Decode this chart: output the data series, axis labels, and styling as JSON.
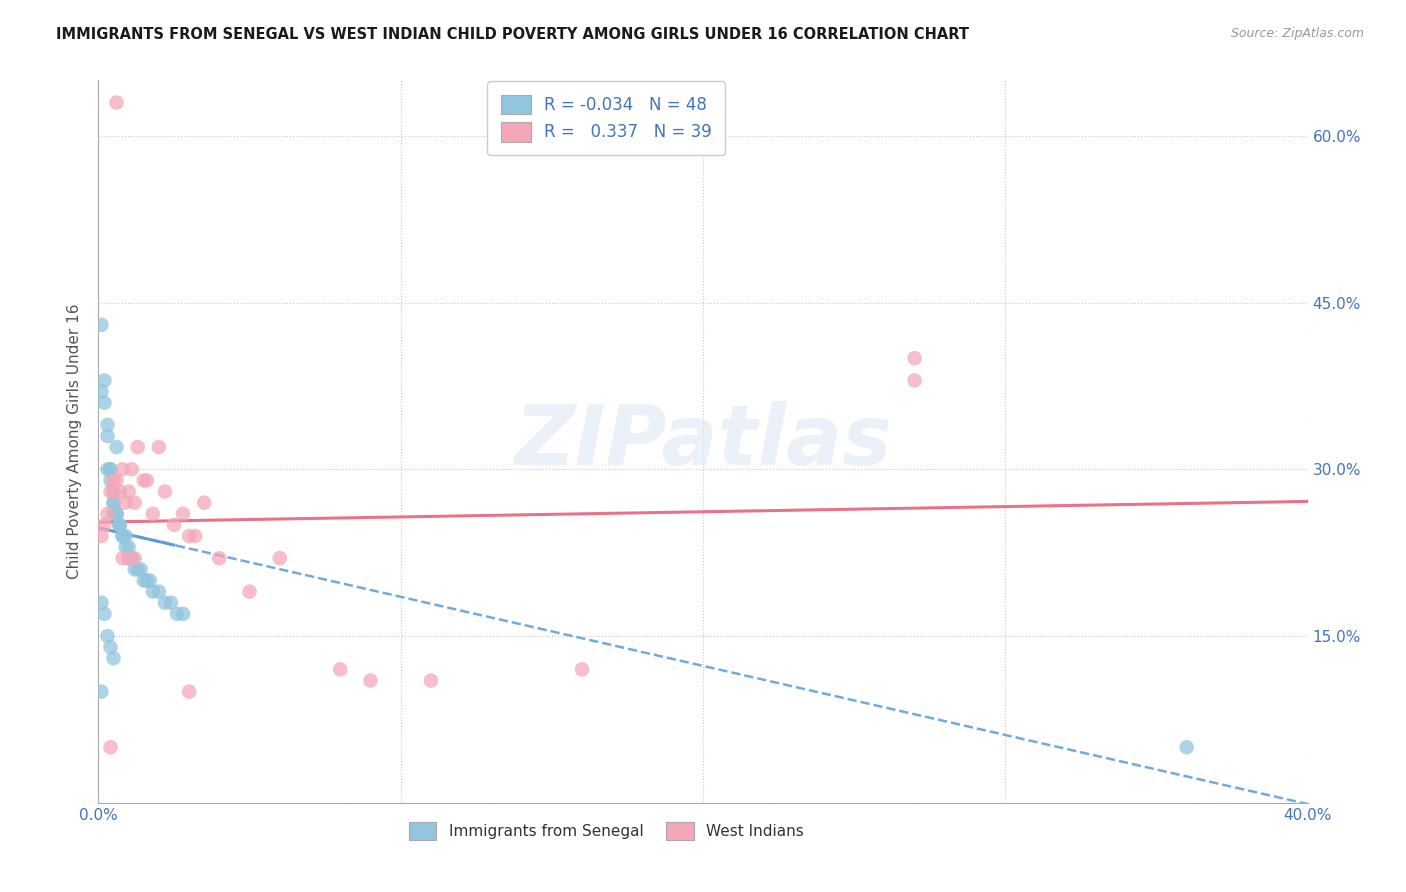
{
  "title": "IMMIGRANTS FROM SENEGAL VS WEST INDIAN CHILD POVERTY AMONG GIRLS UNDER 16 CORRELATION CHART",
  "source": "Source: ZipAtlas.com",
  "ylabel": "Child Poverty Among Girls Under 16",
  "xlim": [
    0.0,
    0.4
  ],
  "ylim": [
    0.0,
    0.65
  ],
  "xticks": [
    0.0,
    0.1,
    0.2,
    0.3,
    0.4
  ],
  "xticklabels": [
    "0.0%",
    "",
    "",
    "",
    "40.0%"
  ],
  "yticks": [
    0.0,
    0.15,
    0.3,
    0.45,
    0.6
  ],
  "right_yticklabels": [
    "",
    "15.0%",
    "30.0%",
    "45.0%",
    "60.0%"
  ],
  "legend1_label": "R = -0.034   N = 48",
  "legend2_label": "R =   0.337   N = 39",
  "legend_label1": "Immigrants from Senegal",
  "legend_label2": "West Indians",
  "blue_color": "#92c5de",
  "pink_color": "#f4a7b9",
  "blue_line_color": "#5b9bd5",
  "pink_line_color": "#e8637a",
  "axis_color": "#4472c4",
  "watermark": "ZIPatlas",
  "blue_R": -0.034,
  "blue_N": 48,
  "pink_R": 0.337,
  "pink_N": 39,
  "blue_x": [
    0.001,
    0.001,
    0.002,
    0.002,
    0.003,
    0.003,
    0.003,
    0.004,
    0.004,
    0.004,
    0.005,
    0.005,
    0.005,
    0.005,
    0.006,
    0.006,
    0.006,
    0.007,
    0.007,
    0.007,
    0.008,
    0.008,
    0.009,
    0.009,
    0.01,
    0.01,
    0.011,
    0.011,
    0.012,
    0.013,
    0.014,
    0.015,
    0.016,
    0.017,
    0.018,
    0.02,
    0.022,
    0.024,
    0.026,
    0.028,
    0.001,
    0.002,
    0.003,
    0.004,
    0.005,
    0.001,
    0.36,
    0.006
  ],
  "blue_y": [
    0.37,
    0.43,
    0.36,
    0.38,
    0.34,
    0.33,
    0.3,
    0.3,
    0.3,
    0.29,
    0.28,
    0.27,
    0.27,
    0.26,
    0.26,
    0.26,
    0.26,
    0.25,
    0.25,
    0.25,
    0.24,
    0.24,
    0.24,
    0.23,
    0.23,
    0.22,
    0.22,
    0.22,
    0.21,
    0.21,
    0.21,
    0.2,
    0.2,
    0.2,
    0.19,
    0.19,
    0.18,
    0.18,
    0.17,
    0.17,
    0.18,
    0.17,
    0.15,
    0.14,
    0.13,
    0.1,
    0.05,
    0.32
  ],
  "pink_x": [
    0.001,
    0.002,
    0.003,
    0.004,
    0.005,
    0.005,
    0.006,
    0.007,
    0.008,
    0.009,
    0.01,
    0.011,
    0.012,
    0.013,
    0.015,
    0.016,
    0.018,
    0.02,
    0.022,
    0.025,
    0.028,
    0.03,
    0.032,
    0.035,
    0.04,
    0.05,
    0.06,
    0.08,
    0.09,
    0.11,
    0.16,
    0.27,
    0.27,
    0.006,
    0.008,
    0.01,
    0.012,
    0.004,
    0.03
  ],
  "pink_y": [
    0.24,
    0.25,
    0.26,
    0.28,
    0.29,
    0.28,
    0.29,
    0.28,
    0.3,
    0.27,
    0.28,
    0.3,
    0.27,
    0.32,
    0.29,
    0.29,
    0.26,
    0.32,
    0.28,
    0.25,
    0.26,
    0.24,
    0.24,
    0.27,
    0.22,
    0.19,
    0.22,
    0.12,
    0.11,
    0.11,
    0.12,
    0.38,
    0.4,
    0.63,
    0.22,
    0.22,
    0.22,
    0.05,
    0.1
  ]
}
